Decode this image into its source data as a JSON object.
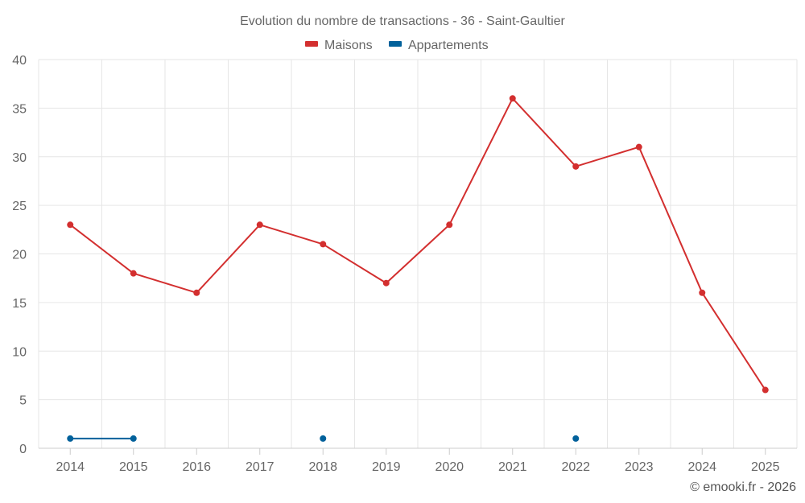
{
  "chart_data": {
    "type": "line",
    "title": "Evolution du nombre de transactions - 36 - Saint-Gaultier",
    "categories": [
      "2014",
      "2015",
      "2016",
      "2017",
      "2018",
      "2019",
      "2020",
      "2021",
      "2022",
      "2023",
      "2024",
      "2025"
    ],
    "series": [
      {
        "name": "Maisons",
        "color": "#d32f2f",
        "values": [
          23,
          18,
          16,
          23,
          21,
          17,
          23,
          36,
          29,
          31,
          16,
          6
        ]
      },
      {
        "name": "Appartements",
        "color": "#01619b",
        "values": [
          1,
          1,
          null,
          null,
          1,
          null,
          null,
          null,
          1,
          null,
          null,
          null
        ]
      }
    ],
    "ylim": [
      0,
      40
    ],
    "yticks": [
      0,
      5,
      10,
      15,
      20,
      25,
      30,
      35,
      40
    ],
    "grid": true,
    "legend_position": "top-center",
    "credit": "© emooki.fr - 2026"
  }
}
